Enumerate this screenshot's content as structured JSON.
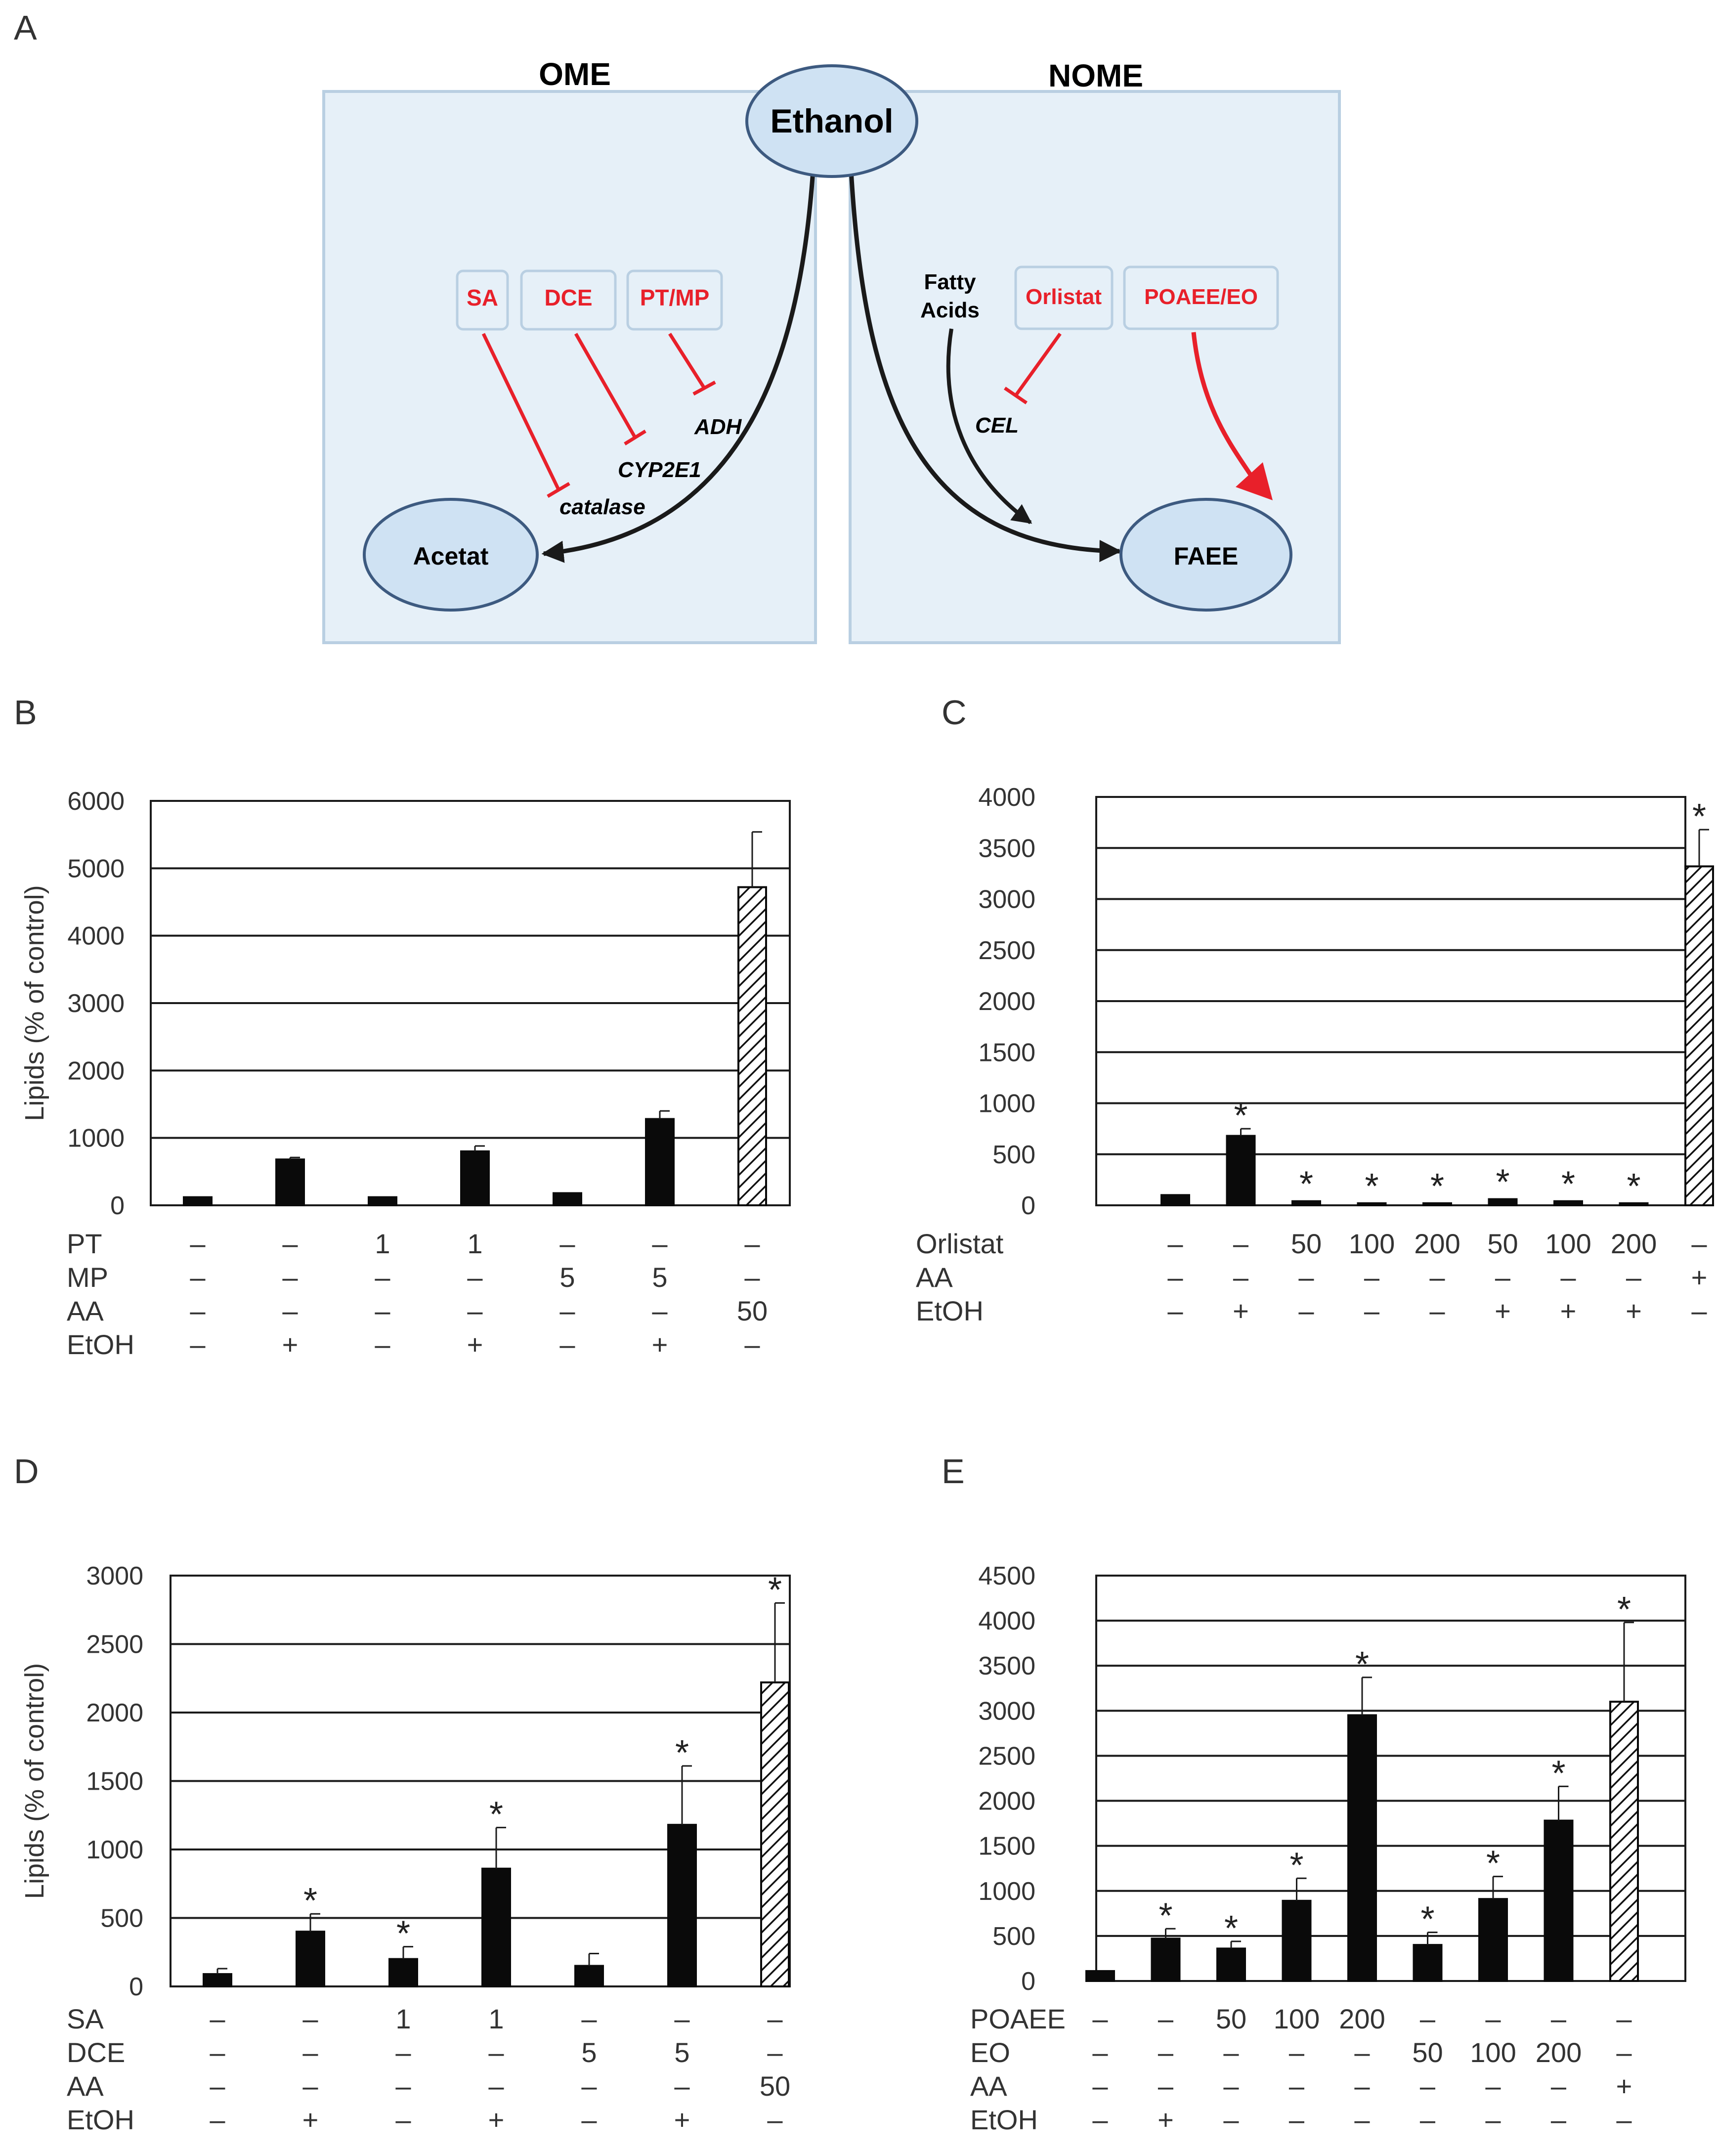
{
  "panel_letters": [
    "A",
    "B",
    "C",
    "D",
    "E"
  ],
  "schematic": {
    "left_box_title": "OME",
    "right_box_title": "NOME",
    "ethanol": "Ethanol",
    "acetat": "Acetat",
    "faee": "FAEE",
    "inhibitor_sa": "SA",
    "inhibitor_dce": "DCE",
    "inhibitor_ptmp": "PT/MP",
    "inhibitor_orlistat": "Orlistat",
    "inducer_poaee_eo": "POAEE/EO",
    "enzyme_adh": "ADH",
    "enzyme_cyp2e1": "CYP2E1",
    "enzyme_catalase": "catalase",
    "enzyme_cel": "CEL",
    "fatty_acids_line1": "Fatty",
    "fatty_acids_line2": "Acids",
    "colors": {
      "box_fill": "#e6f0f8",
      "box_stroke": "#b9cfe2",
      "ellipse_fill": "#cfe2f3",
      "ellipse_stroke": "#3d5a80",
      "inhibitor_red": "#e8202a"
    }
  },
  "chart_data": [
    {
      "panel": "B",
      "type": "bar",
      "ylabel": "Lipids (% of control)",
      "ylim": [
        0,
        6000
      ],
      "yticks": [
        "0",
        "1000",
        "2000",
        "3000",
        "4000",
        "5000",
        "6000"
      ],
      "values": [
        120,
        680,
        120,
        800,
        180,
        1280,
        4720
      ],
      "errors": [
        0,
        30,
        0,
        80,
        0,
        120,
        820
      ],
      "hatched": [
        false,
        false,
        false,
        false,
        false,
        false,
        true
      ],
      "stars": [
        "",
        "",
        "",
        "",
        "",
        "",
        ""
      ],
      "rows": [
        {
          "label": "PT",
          "cells": [
            "–",
            "–",
            "1",
            "1",
            "–",
            "–",
            "–"
          ]
        },
        {
          "label": "MP",
          "cells": [
            "–",
            "–",
            "–",
            "–",
            "5",
            "5",
            "–"
          ]
        },
        {
          "label": "AA",
          "cells": [
            "–",
            "–",
            "–",
            "–",
            "–",
            "–",
            "50"
          ]
        },
        {
          "label": "EtOH",
          "cells": [
            "–",
            "+",
            "–",
            "+",
            "–",
            "+",
            "–"
          ]
        }
      ]
    },
    {
      "panel": "C",
      "type": "bar",
      "ylabel": "",
      "ylim": [
        0,
        4000
      ],
      "yticks": [
        "0",
        "500",
        "1000",
        "1500",
        "2000",
        "2500",
        "3000",
        "3500",
        "4000"
      ],
      "values": [
        100,
        680,
        40,
        20,
        20,
        60,
        40,
        20,
        3320
      ],
      "errors": [
        0,
        70,
        0,
        0,
        0,
        0,
        0,
        0,
        360
      ],
      "hatched": [
        false,
        false,
        false,
        false,
        false,
        false,
        false,
        false,
        true
      ],
      "stars": [
        "",
        "*",
        "*",
        "*",
        "*",
        "*",
        "*",
        "*",
        "*"
      ],
      "rows": [
        {
          "label": "Orlistat",
          "cells": [
            "–",
            "–",
            "50",
            "100",
            "200",
            "50",
            "100",
            "200",
            "–"
          ]
        },
        {
          "label": "AA",
          "cells": [
            "–",
            "–",
            "–",
            "–",
            "–",
            "–",
            "–",
            "–",
            "+"
          ]
        },
        {
          "label": "EtOH",
          "cells": [
            "–",
            "+",
            "–",
            "–",
            "–",
            "+",
            "+",
            "+",
            "–"
          ]
        }
      ]
    },
    {
      "panel": "D",
      "type": "bar",
      "ylabel": "Lipids (% of control)",
      "ylim": [
        0,
        3000
      ],
      "yticks": [
        "0",
        "500",
        "1000",
        "1500",
        "2000",
        "2500",
        "3000"
      ],
      "values": [
        90,
        400,
        200,
        860,
        150,
        1180,
        2220
      ],
      "errors": [
        40,
        130,
        90,
        300,
        90,
        430,
        580
      ],
      "hatched": [
        false,
        false,
        false,
        false,
        false,
        false,
        true
      ],
      "stars": [
        "",
        "*",
        "*",
        "*",
        "",
        "*",
        "*"
      ],
      "rows": [
        {
          "label": "SA",
          "cells": [
            "–",
            "–",
            "1",
            "1",
            "–",
            "–",
            "–"
          ]
        },
        {
          "label": "DCE",
          "cells": [
            "–",
            "–",
            "–",
            "–",
            "5",
            "5",
            "–"
          ]
        },
        {
          "label": "AA",
          "cells": [
            "–",
            "–",
            "–",
            "–",
            "–",
            "–",
            "50"
          ]
        },
        {
          "label": "EtOH",
          "cells": [
            "–",
            "+",
            "–",
            "+",
            "–",
            "+",
            "–"
          ]
        }
      ]
    },
    {
      "panel": "E",
      "type": "bar",
      "ylabel": "",
      "ylim": [
        0,
        4500
      ],
      "yticks": [
        "0",
        "500",
        "1000",
        "1500",
        "2000",
        "2500",
        "3000",
        "3500",
        "4000",
        "4500"
      ],
      "values": [
        110,
        470,
        360,
        890,
        2950,
        400,
        910,
        1780,
        3100
      ],
      "errors": [
        0,
        110,
        80,
        250,
        420,
        140,
        250,
        380,
        880
      ],
      "hatched": [
        false,
        false,
        false,
        false,
        false,
        false,
        false,
        false,
        true
      ],
      "stars": [
        "",
        "*",
        "*",
        "*",
        "*",
        "*",
        "*",
        "*",
        "*"
      ],
      "rows": [
        {
          "label": "POAEE",
          "cells": [
            "–",
            "–",
            "50",
            "100",
            "200",
            "–",
            "–",
            "–",
            "–"
          ]
        },
        {
          "label": "EO",
          "cells": [
            "–",
            "–",
            "–",
            "–",
            "–",
            "50",
            "100",
            "200",
            "–"
          ]
        },
        {
          "label": "AA",
          "cells": [
            "–",
            "–",
            "–",
            "–",
            "–",
            "–",
            "–",
            "–",
            "+"
          ]
        },
        {
          "label": "EtOH",
          "cells": [
            "–",
            "+",
            "–",
            "–",
            "–",
            "–",
            "–",
            "–",
            "–"
          ]
        }
      ]
    }
  ]
}
